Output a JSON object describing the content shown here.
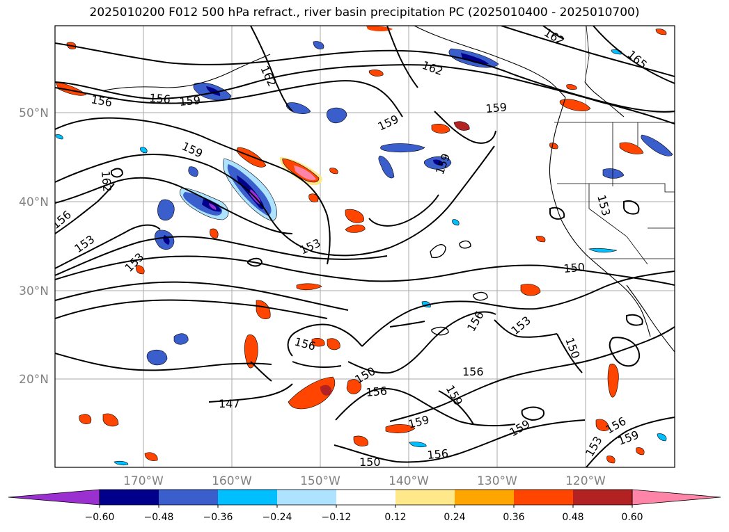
{
  "title": "2025010200 F012 500 hPa refract., river basin precipitation PC (2025010400 - 2025010700)",
  "map": {
    "lon_labels": [
      "170°W",
      "160°W",
      "150°W",
      "140°W",
      "130°W",
      "120°W"
    ],
    "lat_labels": [
      "50°N",
      "40°N",
      "30°N",
      "20°N"
    ],
    "contour_labels": [
      "162",
      "165",
      "162",
      "156",
      "156",
      "159",
      "162",
      "159",
      "159",
      "159",
      "159",
      "153",
      "162",
      "153",
      "153",
      "156",
      "153",
      "150",
      "150",
      "156",
      "153",
      "156",
      "150",
      "156",
      "147",
      "159",
      "159",
      "159",
      "156",
      "150",
      "156",
      "159",
      "153",
      "156"
    ]
  },
  "colorbar": {
    "ticks": [
      "−0.60",
      "−0.48",
      "−0.36",
      "−0.24",
      "−0.12",
      "0.12",
      "0.24",
      "0.36",
      "0.48",
      "0.60"
    ],
    "colors": [
      "#9b30d0",
      "#00008b",
      "#3a5fcd",
      "#00bfff",
      "#aee3ff",
      "#ffffff",
      "#ffe88a",
      "#ffa500",
      "#ff4500",
      "#b22222",
      "#ff85a8"
    ]
  },
  "chart_data": {
    "type": "heatmap",
    "title": "2025010200 F012 500 hPa refract., river basin precipitation PC (2025010400 - 2025010700)",
    "xlabel": "",
    "ylabel": "",
    "x_ticks": [
      "170°W",
      "160°W",
      "150°W",
      "140°W",
      "130°W",
      "120°W"
    ],
    "y_ticks": [
      "50°N",
      "40°N",
      "30°N",
      "20°N"
    ],
    "contour_levels": [
      147,
      150,
      153,
      156,
      159,
      162,
      165
    ],
    "color_levels": [
      -0.6,
      -0.48,
      -0.36,
      -0.24,
      -0.12,
      0.12,
      0.24,
      0.36,
      0.48,
      0.6
    ],
    "colorbar_extend": "both",
    "grid": true
  }
}
